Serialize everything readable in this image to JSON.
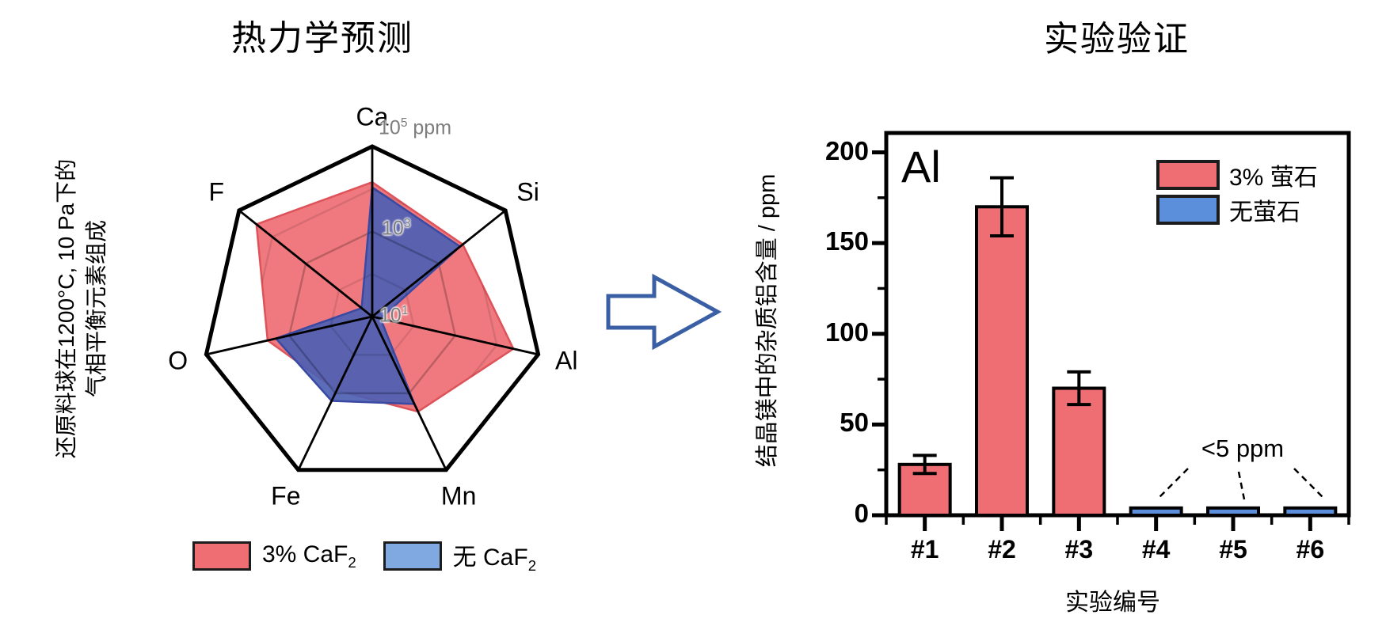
{
  "figure": {
    "background": "#ffffff"
  },
  "left_panel": {
    "title": "热力学预测",
    "side_label_line1": "还原料球在1200°C, 10 Pa下的",
    "side_label_line2": "气相平衡元素组成",
    "radial_ticks": [
      {
        "base": "10",
        "exp": "1",
        "unit": ""
      },
      {
        "base": "10",
        "exp": "3",
        "unit": ""
      },
      {
        "base": "10",
        "exp": "5",
        "unit": " ppm"
      }
    ],
    "legend": [
      {
        "label_base": "3% CaF",
        "label_sub": "2",
        "swatch_color": "#ee6e73"
      },
      {
        "label_base": "无 CaF",
        "label_sub": "2",
        "swatch_color": "#7fa9e0"
      }
    ]
  },
  "arrow": {
    "direction": "right",
    "outline_color": "#3a5fa5",
    "fill_color": "#ffffff"
  },
  "right_panel": {
    "title": "实验验证",
    "corner_label": "Al",
    "y_axis_label": "结晶镁中的杂质铝含量 / ppm",
    "x_axis_label": "实验编号",
    "annotation": "<5 ppm",
    "legend": [
      {
        "label": "3% 萤石",
        "swatch_color": "#ee6e73"
      },
      {
        "label": "无萤石",
        "swatch_color": "#5b8edb"
      }
    ]
  },
  "chart_data": [
    {
      "type": "radar",
      "title": "热力学预测",
      "axes": [
        "Ca",
        "Si",
        "Al",
        "Mn",
        "Fe",
        "O",
        "F"
      ],
      "scale": "log10 radial axis, 10^1 ppm at center, 10^3 ppm mid, 10^5 ppm at outer edge",
      "outline_color": "#000000",
      "series": [
        {
          "name": "3% CaF2",
          "fill_color": "#ee6e73",
          "edge_color": "#dd5359",
          "radial_fraction": [
            0.79,
            0.68,
            0.85,
            0.62,
            0.48,
            0.63,
            0.87
          ],
          "values_ppm": [
            14000,
            5200,
            25000,
            3000,
            830,
            3300,
            30000
          ]
        },
        {
          "name": "无 CaF2",
          "fill_color": "#4d5fb3",
          "edge_color": "#3a49a2",
          "radial_fraction": [
            0.76,
            0.66,
            0.05,
            0.57,
            0.55,
            0.58,
            0.08
          ],
          "values_ppm": [
            11000,
            4400,
            16,
            1900,
            1600,
            2100,
            21
          ]
        }
      ]
    },
    {
      "type": "bar",
      "title": "实验验证",
      "categories": [
        "#1",
        "#2",
        "#3",
        "#4",
        "#5",
        "#6"
      ],
      "values": [
        28,
        170,
        70,
        4,
        4,
        4
      ],
      "errors": [
        5,
        16,
        9,
        0,
        0,
        0
      ],
      "colors": [
        "#ee6e73",
        "#ee6e73",
        "#ee6e73",
        "#5b8edb",
        "#5b8edb",
        "#5b8edb"
      ],
      "series_legend": [
        {
          "name": "3% 萤石",
          "color": "#ee6e73",
          "bars": [
            "#1",
            "#2",
            "#3"
          ]
        },
        {
          "name": "无萤石",
          "color": "#5b8edb",
          "bars": [
            "#4",
            "#5",
            "#6"
          ]
        }
      ],
      "ylabel": "结晶镁中的杂质铝含量 / ppm",
      "xlabel": "实验编号",
      "ylim": [
        0,
        210
      ],
      "yticks": [
        0,
        50,
        100,
        150,
        200
      ],
      "annotation": "<5 ppm applies to bars #4, #5, #6"
    }
  ]
}
